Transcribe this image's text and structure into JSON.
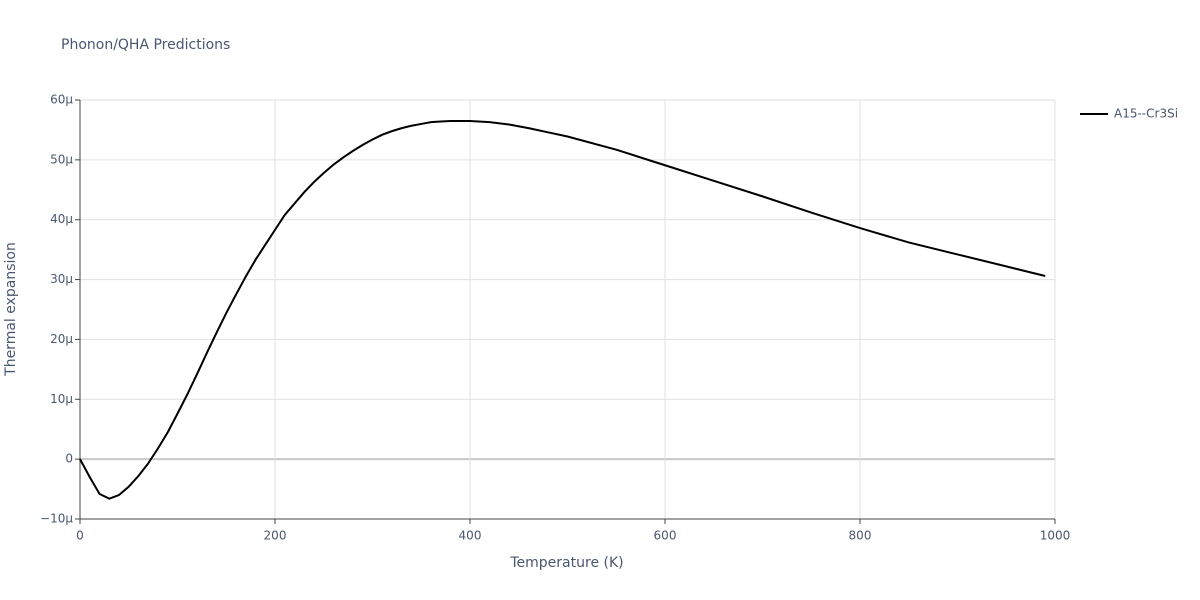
{
  "chart_data": {
    "type": "line",
    "title": "Phonon/QHA Predictions",
    "x_label": "Temperature (K)",
    "y_label": "Thermal expansion",
    "x": [
      0,
      10,
      20,
      30,
      40,
      50,
      60,
      70,
      80,
      90,
      100,
      110,
      120,
      130,
      140,
      150,
      160,
      170,
      180,
      190,
      200,
      210,
      220,
      230,
      240,
      250,
      260,
      270,
      280,
      290,
      300,
      310,
      320,
      330,
      340,
      350,
      360,
      370,
      380,
      390,
      400,
      420,
      440,
      460,
      480,
      500,
      550,
      600,
      650,
      700,
      750,
      800,
      850,
      900,
      950,
      990
    ],
    "series": [
      {
        "name": "A15--Cr3Si",
        "color": "#000000",
        "values": [
          0,
          -3,
          -5.8,
          -6.6,
          -6,
          -4.6,
          -2.8,
          -0.7,
          1.8,
          4.5,
          7.6,
          10.8,
          14.2,
          17.7,
          21.1,
          24.4,
          27.5,
          30.5,
          33.3,
          35.8,
          38.3,
          40.8,
          42.7,
          44.6,
          46.3,
          47.8,
          49.2,
          50.4,
          51.5,
          52.5,
          53.4,
          54.2,
          54.8,
          55.3,
          55.7,
          56.0,
          56.3,
          56.4,
          56.5,
          56.5,
          56.5,
          56.3,
          55.9,
          55.3,
          54.6,
          53.9,
          51.7,
          49.1,
          46.5,
          43.9,
          41.2,
          38.6,
          36.2,
          34.2,
          32.2,
          30.6
        ]
      }
    ],
    "xlim": [
      0,
      1000
    ],
    "xticks": [
      0,
      200,
      400,
      600,
      800,
      1000
    ],
    "ylim": [
      -10,
      60
    ],
    "yticks": [
      {
        "value": -10,
        "label": "−10μ"
      },
      0,
      {
        "value": 10,
        "label": "10μ"
      },
      {
        "value": 20,
        "label": "20μ"
      },
      {
        "value": 30,
        "label": "30μ"
      },
      {
        "value": 40,
        "label": "40μ"
      },
      {
        "value": 50,
        "label": "50μ"
      },
      {
        "value": 60,
        "label": "60μ"
      }
    ],
    "grid": true
  }
}
